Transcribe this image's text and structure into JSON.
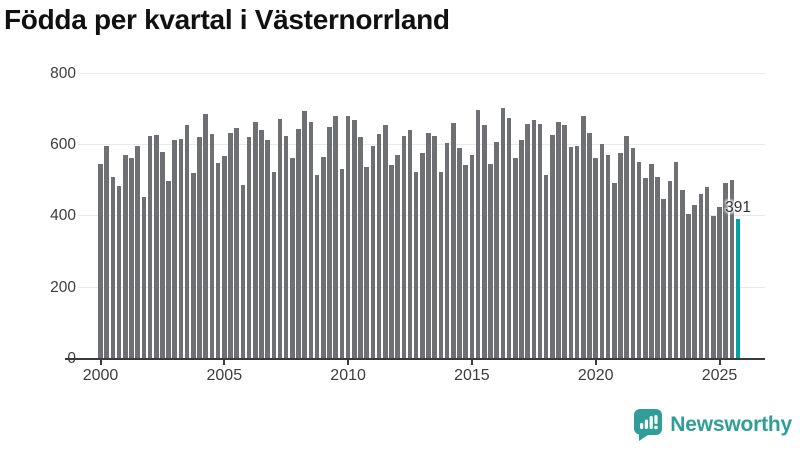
{
  "chart_data": {
    "type": "bar",
    "title": "Födda per kvartal i Västernorrland",
    "frequency": "quarterly",
    "first_quarter": "2000 Q1",
    "last_quarter": "2025 Q4",
    "values": [
      545,
      595,
      508,
      483,
      569,
      562,
      595,
      452,
      623,
      627,
      578,
      497,
      612,
      616,
      653,
      520,
      620,
      684,
      630,
      548,
      568,
      632,
      645,
      487,
      620,
      662,
      639,
      611,
      522,
      670,
      623,
      563,
      644,
      693,
      662,
      513,
      564,
      650,
      679,
      530,
      679,
      667,
      622,
      536,
      595,
      628,
      655,
      541,
      569,
      623,
      641,
      522,
      575,
      633,
      623,
      522,
      605,
      661,
      590,
      543,
      569,
      695,
      655,
      546,
      608,
      702,
      674,
      562,
      611,
      658,
      667,
      656,
      515,
      627,
      664,
      655,
      592,
      595,
      680,
      631,
      563,
      601,
      571,
      493,
      577,
      623,
      590,
      550,
      507,
      546,
      509,
      448,
      496,
      552,
      473,
      406,
      429,
      462,
      481,
      399,
      425,
      492,
      499,
      391
    ],
    "highlight": {
      "quarter": "2025 Q4",
      "value": 391,
      "label": "391"
    },
    "x_ticks": [
      {
        "label": "2000",
        "quarter_index": 0
      },
      {
        "label": "2005",
        "quarter_index": 20
      },
      {
        "label": "2010",
        "quarter_index": 40
      },
      {
        "label": "2015",
        "quarter_index": 60
      },
      {
        "label": "2020",
        "quarter_index": 80
      },
      {
        "label": "2025",
        "quarter_index": 100
      }
    ],
    "y_ticks": [
      0,
      200,
      400,
      600,
      800
    ],
    "ylim": [
      0,
      800
    ],
    "grid": true,
    "legend": "none",
    "colors": {
      "bar": "#6f7074",
      "highlight": "#00a2a4",
      "grid": "#e8e8e8",
      "axis": "#3a3a3a",
      "title": "#111111",
      "tick_text": "#3d3d3d",
      "value_label": "#333333"
    }
  },
  "footer": {
    "brand": "Newsworthy",
    "color": "#2f9e98",
    "icon": "bar-chart-speech-bubble"
  }
}
